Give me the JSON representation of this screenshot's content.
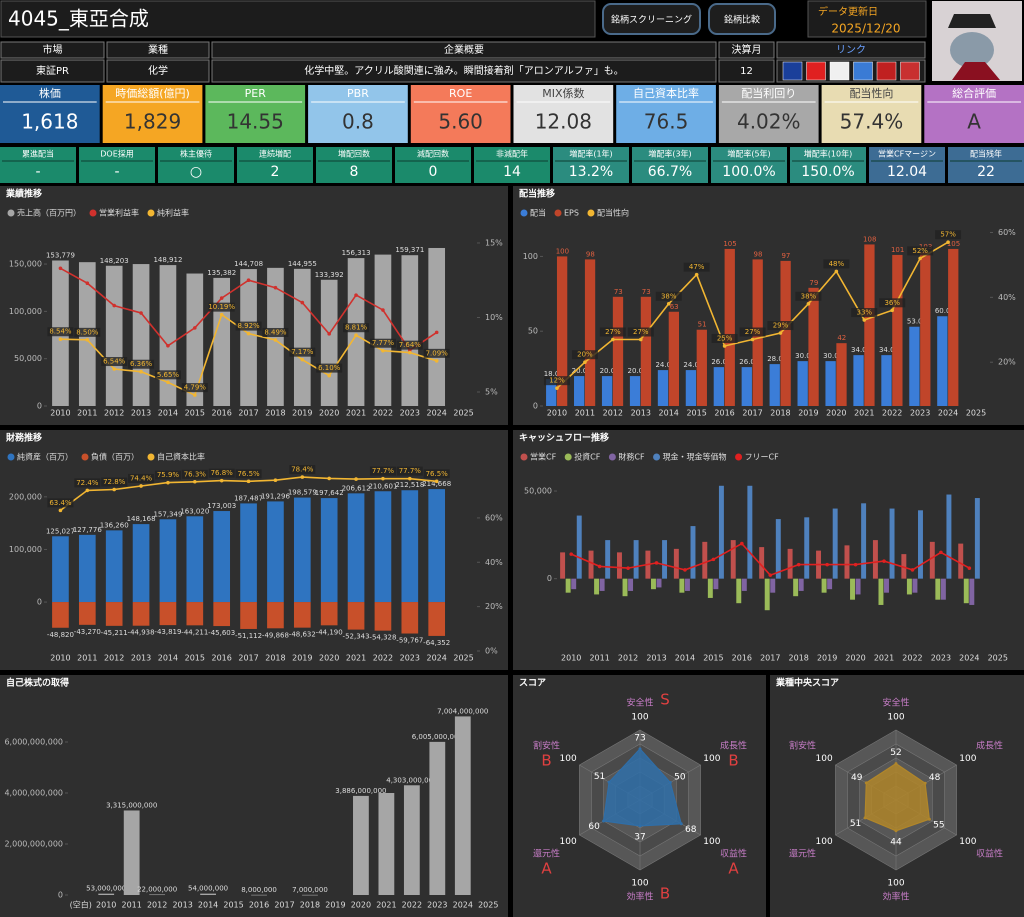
{
  "header": {
    "title": "4045_東亞合成",
    "buttons": [
      "銘柄スクリーニング",
      "銘柄比較"
    ],
    "update_label": "データ更新日",
    "update_date": "2025/12/20"
  },
  "info": {
    "headers": [
      "市場",
      "業種",
      "企業概要",
      "決算月",
      "リンク"
    ],
    "values": [
      "東証PR",
      "化学",
      "化学中堅。アクリル酸関連に強み。瞬間接着剤「アロンアルファ」も。",
      "12"
    ]
  },
  "metrics": [
    {
      "label": "株価",
      "value": "1,618",
      "color": "#1f5a96"
    },
    {
      "label": "時価総額(億円)",
      "value": "1,829",
      "color": "#f5a623"
    },
    {
      "label": "PER",
      "value": "14.55",
      "color": "#5cb85c"
    },
    {
      "label": "PBR",
      "value": "0.8",
      "color": "#92c5ea"
    },
    {
      "label": "ROE",
      "value": "5.60",
      "color": "#f47a5a"
    },
    {
      "label": "MIX係数",
      "value": "12.08",
      "color": "#e2e2e2"
    },
    {
      "label": "自己資本比率",
      "value": "76.5",
      "color": "#6eaee6"
    },
    {
      "label": "配当利回り",
      "value": "4.02%",
      "color": "#a8a8a8"
    },
    {
      "label": "配当性向",
      "value": "57.4%",
      "color": "#e8dcb2"
    },
    {
      "label": "総合評価",
      "value": "A",
      "color": "#b472c4"
    }
  ],
  "stats": [
    {
      "label": "累進配当",
      "value": "-",
      "color": "#1b8a6b"
    },
    {
      "label": "DOE採用",
      "value": "-",
      "color": "#1b8a6b"
    },
    {
      "label": "株主優待",
      "value": "○",
      "color": "#1b8a6b"
    },
    {
      "label": "連続増配",
      "value": "2",
      "color": "#1b8a6b"
    },
    {
      "label": "増配回数",
      "value": "8",
      "color": "#1b8a6b"
    },
    {
      "label": "減配回数",
      "value": "0",
      "color": "#1b8a6b"
    },
    {
      "label": "非減配年",
      "value": "14",
      "color": "#1b8a6b"
    },
    {
      "label": "増配率(1年)",
      "value": "13.2%",
      "color": "#2b8c7f"
    },
    {
      "label": "増配率(3年)",
      "value": "66.7%",
      "color": "#2b8c7f"
    },
    {
      "label": "増配率(5年)",
      "value": "100.0%",
      "color": "#2b8c7f"
    },
    {
      "label": "増配率(10年)",
      "value": "150.0%",
      "color": "#2b8c7f"
    },
    {
      "label": "営業CFマージン",
      "value": "12.04",
      "color": "#3d6c94"
    },
    {
      "label": "配当残年",
      "value": "22",
      "color": "#3d6c94"
    }
  ],
  "chart_data": [
    {
      "type": "combo",
      "title": "業績推移",
      "barmode": "group",
      "categories": [
        "2010",
        "2011",
        "2012",
        "2013",
        "2014",
        "2015",
        "2016",
        "2017",
        "2018",
        "2019",
        "2020",
        "2021",
        "2022",
        "2023",
        "2024",
        "2025"
      ],
      "series": [
        {
          "name": "売上高（百万円）",
          "type": "bar",
          "color": "#a6a6a6",
          "values": [
            153779,
            152000,
            148203,
            150000,
            148912,
            140000,
            135382,
            144708,
            146000,
            144955,
            133392,
            156313,
            160000,
            159371,
            167000,
            null
          ],
          "value_labels": [
            "153,779",
            null,
            "148,203",
            null,
            "148,912",
            null,
            "135,382",
            "144,708",
            null,
            "144,955",
            "133,392",
            "156,313",
            null,
            "159,371",
            null,
            null
          ]
        },
        {
          "name": "営業利益率",
          "type": "line",
          "axis": "y2",
          "color": "#d0312d",
          "values": [
            13.3,
            12.3,
            10.8,
            10.3,
            8.1,
            9.3,
            11.3,
            12.5,
            12.0,
            11.0,
            8.9,
            11.5,
            10.5,
            7.8,
            9.0,
            null
          ]
        },
        {
          "name": "純利益率",
          "type": "line",
          "axis": "y2",
          "color": "#f2b632",
          "values": [
            8.54,
            8.5,
            6.54,
            6.36,
            5.65,
            4.79,
            10.19,
            8.92,
            8.49,
            7.17,
            6.1,
            8.81,
            7.77,
            7.64,
            7.09,
            null
          ],
          "value_labels": [
            "8.54%",
            "8.50%",
            "6.54%",
            "6.36%",
            "5.65%",
            "4.79%",
            "10.19%",
            "8.92%",
            "8.49%",
            "7.17%",
            "6.10%",
            "8.81%",
            "7.77%",
            "7.64%",
            "7.09%",
            null
          ]
        }
      ],
      "ylim": [
        0,
        186000
      ],
      "yticks": [
        0,
        {
          "value": 50000,
          "label": "50,000"
        },
        {
          "value": 100000,
          "label": "100,000"
        },
        {
          "value": 150000,
          "label": "150,000"
        }
      ],
      "y2lim": [
        4.06,
        15.87
      ],
      "y2ticks": [
        {
          "value": 5,
          "label": "5%"
        },
        {
          "value": 10,
          "label": "10%"
        },
        {
          "value": 15,
          "label": "15%"
        }
      ]
    },
    {
      "type": "combo",
      "title": "配当推移",
      "barmode": "group",
      "categories": [
        "2010",
        "2011",
        "2012",
        "2013",
        "2014",
        "2015",
        "2016",
        "2017",
        "2018",
        "2019",
        "2020",
        "2021",
        "2022",
        "2023",
        "2024",
        "2025"
      ],
      "series": [
        {
          "name": "配当",
          "type": "bar",
          "color": "#3b7dd8",
          "values": [
            18,
            20,
            20,
            20,
            24,
            24,
            26,
            26,
            28,
            30,
            30,
            34,
            34,
            53,
            60,
            null
          ],
          "value_labels": [
            "18.0",
            "20.0",
            "20.0",
            "20.0",
            "24.0",
            "24.0",
            "26.0",
            "26.0",
            "28.0",
            "30.0",
            "30.0",
            "34.0",
            "34.0",
            "53.0",
            "60.0",
            null
          ]
        },
        {
          "name": "EPS",
          "type": "bar",
          "color": "#c0452a",
          "labels": true,
          "values": [
            100,
            98,
            73,
            73,
            63,
            51,
            105,
            98,
            97,
            79,
            42,
            108,
            101,
            103,
            105,
            null
          ]
        },
        {
          "name": "配当性向",
          "type": "line",
          "axis": "y2",
          "color": "#f2b632",
          "values": [
            12,
            20,
            27,
            27,
            38,
            47,
            25,
            27,
            29,
            38,
            48,
            33,
            36,
            52,
            57,
            null
          ],
          "value_labels": [
            "12%",
            "20%",
            "27%",
            "27%",
            "38%",
            "47%",
            "25%",
            "27%",
            "29%",
            "38%",
            "48%",
            "33%",
            "36%",
            "52%",
            "57%",
            null
          ]
        }
      ],
      "ylim": [
        0,
        121
      ],
      "yticks": [
        0,
        50,
        100
      ],
      "y2lim": [
        6.5,
        62.3
      ],
      "y2ticks": [
        {
          "value": 20,
          "label": "20%"
        },
        {
          "value": 40,
          "label": "40%"
        },
        {
          "value": 60,
          "label": "60%"
        }
      ]
    },
    {
      "type": "combo",
      "title": "財務推移",
      "barmode": "overlay",
      "categories": [
        "2010",
        "2011",
        "2012",
        "2013",
        "2014",
        "2015",
        "2016",
        "2017",
        "2018",
        "2019",
        "2020",
        "2021",
        "2022",
        "2023",
        "2024",
        "2025"
      ],
      "series": [
        {
          "name": "純資産（百万）",
          "type": "bar",
          "color": "#2f74c0",
          "values": [
            125027,
            127776,
            136260,
            148168,
            157349,
            163020,
            173003,
            187487,
            191296,
            198579,
            197642,
            206612,
            210601,
            212518,
            214668,
            null
          ],
          "value_labels": [
            "125,027",
            "127,776",
            "136,260",
            "148,168",
            "157,349",
            "163,020",
            "173,003",
            "187,487",
            "191,296",
            "198,579",
            "197,642",
            "206,612",
            "210,601",
            "212,518",
            "214,668",
            null
          ]
        },
        {
          "name": "負債（百万）",
          "type": "bar",
          "color": "#c8502a",
          "values": [
            -48820,
            -43270,
            -45211,
            -44938,
            -43819,
            -44211,
            -45603,
            -51112,
            -49868,
            -48632,
            -44190,
            -52343,
            -54328,
            -59767,
            -64352,
            null
          ],
          "value_labels": [
            "-48,820",
            "-43,270",
            "-45,211",
            "-44,938",
            "-43,819",
            "-44,211",
            "-45,603",
            "-51,112",
            "-49,868",
            "-48,632",
            "-44,190",
            "-52,343",
            "-54,328",
            "-59,767",
            "-64,352",
            null
          ]
        },
        {
          "name": "自己資本比率",
          "type": "line",
          "axis": "y2",
          "color": "#f2b632",
          "values": [
            63.4,
            72.4,
            72.8,
            74.4,
            75.9,
            76.3,
            76.8,
            76.5,
            77.0,
            78.4,
            77.8,
            77.5,
            77.7,
            77.7,
            76.5,
            null
          ],
          "value_labels": [
            "63.4%",
            "72.4%",
            "72.8%",
            "74.4%",
            "75.9%",
            "76.3%",
            "76.8%",
            "76.5%",
            null,
            "78.4%",
            null,
            null,
            "77.7%",
            "77.7%",
            "76.5%",
            null
          ]
        }
      ],
      "ylim": [
        -93000,
        251000
      ],
      "yticks": [
        0,
        {
          "value": 100000,
          "label": "100,000"
        },
        {
          "value": 200000,
          "label": "200,000"
        }
      ],
      "y2lim": [
        0,
        81.6
      ],
      "y2ticks": [
        {
          "value": 0,
          "label": "0%"
        },
        {
          "value": 20,
          "label": "20%"
        },
        {
          "value": 40,
          "label": "40%"
        },
        {
          "value": 60,
          "label": "60%"
        }
      ]
    },
    {
      "type": "combo",
      "title": "キャッシュフロー推移",
      "barmode": "group",
      "categories": [
        "2010",
        "2011",
        "2012",
        "2013",
        "2014",
        "2015",
        "2016",
        "2017",
        "2018",
        "2019",
        "2020",
        "2021",
        "2022",
        "2023",
        "2024",
        "2025"
      ],
      "series": [
        {
          "name": "営業CF",
          "type": "bar",
          "color": "#c0504d",
          "values": [
            15000,
            16000,
            15000,
            16000,
            17000,
            21000,
            22000,
            18000,
            17000,
            16000,
            19000,
            22000,
            14000,
            21000,
            20000,
            null
          ]
        },
        {
          "name": "投資CF",
          "type": "bar",
          "color": "#9bbb59",
          "values": [
            -8000,
            -9000,
            -10000,
            -6000,
            -8000,
            -11000,
            -14000,
            -18000,
            -10000,
            -8000,
            -12000,
            -15000,
            -9000,
            -12000,
            -14000,
            null
          ]
        },
        {
          "name": "財務CF",
          "type": "bar",
          "color": "#8064a2",
          "values": [
            -6000,
            -7000,
            -7000,
            -5000,
            -7000,
            -6000,
            -7000,
            -8000,
            -7000,
            -6000,
            -9000,
            -8000,
            -8000,
            -12000,
            -15000,
            null
          ]
        },
        {
          "name": "現金・現金等価物",
          "type": "bar",
          "color": "#4f81bd",
          "values": [
            36000,
            22000,
            22000,
            22000,
            30000,
            53000,
            53000,
            34000,
            35000,
            40000,
            43000,
            40000,
            39000,
            48000,
            46000,
            null
          ]
        },
        {
          "name": "フリーCF",
          "type": "line",
          "color": "#e02020",
          "values": [
            14000,
            7000,
            6000,
            9000,
            5000,
            11000,
            20000,
            2000,
            8000,
            8000,
            8000,
            10000,
            5000,
            15000,
            6000,
            null
          ]
        }
      ],
      "ylim": [
        -35000,
        62000
      ],
      "yticks": [
        0,
        {
          "value": 50000,
          "label": "50,000"
        }
      ]
    },
    {
      "type": "combo",
      "title": "自己株式の取得",
      "barmode": "group",
      "categories": [
        "(空白)",
        "2010",
        "2011",
        "2012",
        "2013",
        "2014",
        "2015",
        "2016",
        "2017",
        "2018",
        "2019",
        "2020",
        "2021",
        "2022",
        "2023",
        "2024",
        "2025"
      ],
      "series": [
        {
          "type": "bar",
          "color": "#a6a6a6",
          "values": [
            null,
            53000000,
            3315000000,
            22000000,
            null,
            54000000,
            null,
            8000000,
            null,
            7000000,
            null,
            3886000000,
            4000000000,
            4303000000,
            6005000000,
            7004000000,
            null
          ],
          "value_labels": [
            null,
            "53,000,000",
            "3,315,000,000",
            "22,000,000",
            null,
            "54,000,000",
            null,
            "8,000,000",
            null,
            "7,000,000",
            null,
            "3,886,000,000",
            null,
            "4,303,000,000",
            "6,005,000,000",
            "7,004,000,000",
            null
          ]
        }
      ],
      "ylim": [
        0,
        8000000000
      ],
      "yticks": [
        0,
        {
          "value": 2000000000,
          "label": "2,000,000,000"
        },
        {
          "value": 4000000000,
          "label": "4,000,000,000"
        },
        {
          "value": 6000000000,
          "label": "6,000,000,000"
        }
      ]
    },
    {
      "type": "radar",
      "title": "スコア",
      "axes": [
        "安全性",
        "成長性",
        "収益性",
        "効率性",
        "還元性",
        "割安性"
      ],
      "values": [
        73,
        50,
        68,
        37,
        60,
        51
      ],
      "grades": [
        "S",
        "B",
        "A",
        "B",
        "A",
        "B"
      ],
      "rlim": [
        0,
        100
      ],
      "color": "#2f6ea8"
    },
    {
      "type": "radar",
      "title": "業種中央スコア",
      "axes": [
        "安全性",
        "成長性",
        "収益性",
        "効率性",
        "還元性",
        "割安性"
      ],
      "values": [
        52,
        48,
        55,
        44,
        51,
        49
      ],
      "rlim": [
        0,
        100
      ],
      "color": "#b0862a"
    }
  ]
}
